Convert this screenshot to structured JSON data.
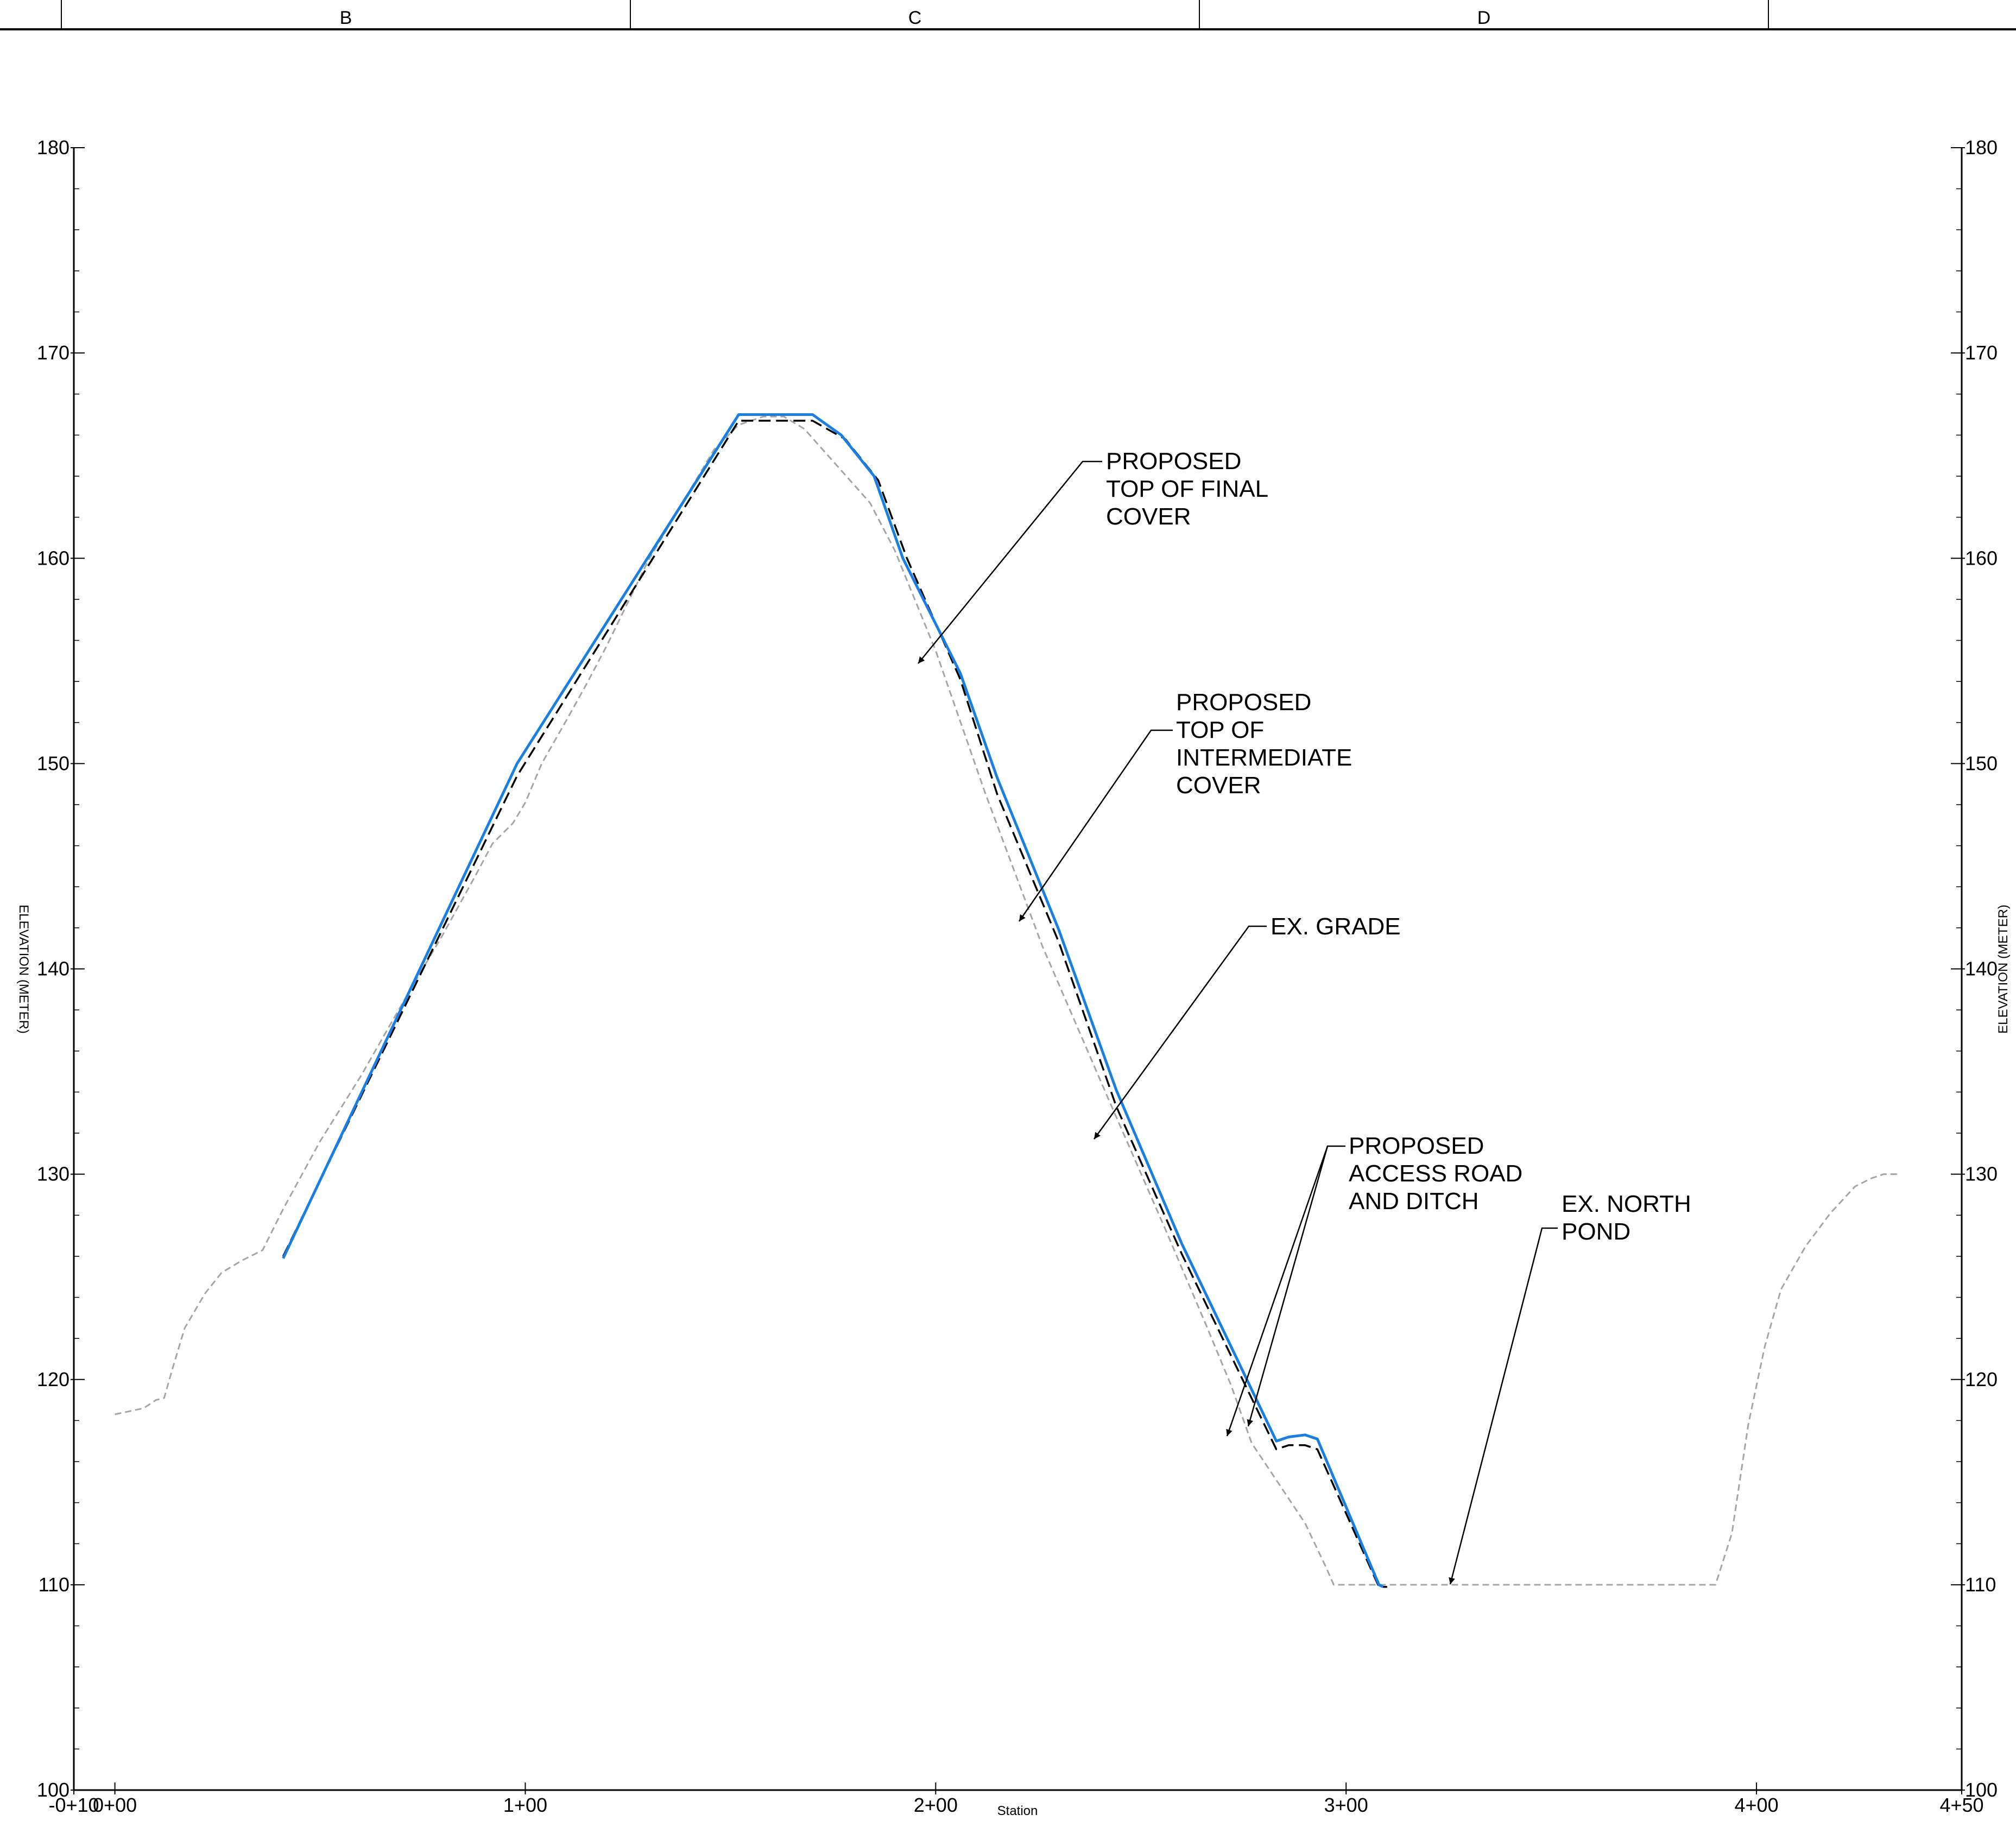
{
  "sheet": {
    "grid_letters": [
      "B",
      "C",
      "D"
    ]
  },
  "chart_data": {
    "type": "line",
    "title": "",
    "xlabel": "Station",
    "ylabel": "ELEVATION (METER)",
    "xlim": [
      -10,
      450
    ],
    "ylim": [
      100,
      180
    ],
    "grid": false,
    "x_ticks": [
      {
        "value": -10,
        "label": "-0+10"
      },
      {
        "value": 0,
        "label": "0+00"
      },
      {
        "value": 100,
        "label": "1+00"
      },
      {
        "value": 200,
        "label": "2+00"
      },
      {
        "value": 300,
        "label": "3+00"
      },
      {
        "value": 400,
        "label": "4+00"
      },
      {
        "value": 450,
        "label": "4+50"
      }
    ],
    "y_ticks": [
      {
        "value": 100,
        "label": "100"
      },
      {
        "value": 110,
        "label": "110"
      },
      {
        "value": 120,
        "label": "120"
      },
      {
        "value": 130,
        "label": "130"
      },
      {
        "value": 140,
        "label": "140"
      },
      {
        "value": 150,
        "label": "150"
      },
      {
        "value": 160,
        "label": "160"
      },
      {
        "value": 170,
        "label": "170"
      },
      {
        "value": 180,
        "label": "180"
      }
    ],
    "series": [
      {
        "name": "EX. GRADE",
        "color": "#a6a6a6",
        "dash": "dashed",
        "points": [
          [
            0,
            118.3
          ],
          [
            7,
            118.6
          ],
          [
            10,
            119
          ],
          [
            12,
            119.1
          ],
          [
            14,
            120.5
          ],
          [
            17,
            122.5
          ],
          [
            22,
            124.2
          ],
          [
            26,
            125.2
          ],
          [
            31,
            125.8
          ],
          [
            34,
            126.1
          ],
          [
            36,
            126.3
          ],
          [
            41,
            128.3
          ],
          [
            50,
            131.6
          ],
          [
            60,
            134.8
          ],
          [
            70,
            138.3
          ],
          [
            80,
            141.7
          ],
          [
            88,
            144.6
          ],
          [
            92,
            146.1
          ],
          [
            97,
            147.1
          ],
          [
            100,
            148.1
          ],
          [
            104,
            150
          ],
          [
            110,
            152.1
          ],
          [
            115,
            153.9
          ],
          [
            120,
            155.8
          ],
          [
            130,
            159.9
          ],
          [
            138,
            162.6
          ],
          [
            146,
            165.3
          ],
          [
            152,
            166.5
          ],
          [
            158,
            166.9
          ],
          [
            163,
            166.9
          ],
          [
            168,
            166.3
          ],
          [
            176,
            164.5
          ],
          [
            184,
            162.7
          ],
          [
            190,
            160.4
          ],
          [
            200,
            155.5
          ],
          [
            212,
            148.6
          ],
          [
            226,
            141.1
          ],
          [
            242,
            133.7
          ],
          [
            256,
            127.3
          ],
          [
            266,
            122.6
          ],
          [
            272,
            119.7
          ],
          [
            277,
            116.9
          ],
          [
            284,
            114.8
          ],
          [
            290,
            113
          ],
          [
            295,
            110.9
          ],
          [
            297,
            110
          ],
          [
            330,
            110
          ],
          [
            390,
            110
          ],
          [
            394,
            112.5
          ],
          [
            398,
            117.8
          ],
          [
            402,
            121.6
          ],
          [
            406,
            124.4
          ],
          [
            412,
            126.5
          ],
          [
            418,
            128.1
          ],
          [
            424,
            129.4
          ],
          [
            428,
            129.8
          ],
          [
            431,
            130
          ],
          [
            435,
            130
          ]
        ]
      },
      {
        "name": "PROPOSED TOP OF INTERMEDIATE COVER",
        "color": "#000000",
        "dash": "dashed",
        "points": [
          [
            41,
            126
          ],
          [
            98,
            149.4
          ],
          [
            152,
            166.7
          ],
          [
            170,
            166.7
          ],
          [
            178,
            165.8
          ],
          [
            186,
            163.8
          ],
          [
            193,
            160
          ],
          [
            206,
            154.1
          ],
          [
            215,
            148.5
          ],
          [
            230,
            141.3
          ],
          [
            244,
            133.3
          ],
          [
            260,
            126.1
          ],
          [
            283,
            116.6
          ],
          [
            286,
            116.8
          ],
          [
            290,
            116.8
          ],
          [
            293,
            116.6
          ],
          [
            308,
            109.9
          ],
          [
            310,
            109.9
          ]
        ]
      },
      {
        "name": "PROPOSED TOP OF FINAL COVER",
        "color": "#1a7fe0",
        "dash": "solid",
        "points": [
          [
            41,
            125.9
          ],
          [
            98,
            150
          ],
          [
            152,
            167
          ],
          [
            170,
            167
          ],
          [
            177,
            166
          ],
          [
            185,
            164
          ],
          [
            192,
            160
          ],
          [
            206,
            154.4
          ],
          [
            215,
            149.3
          ],
          [
            230,
            141.9
          ],
          [
            244,
            134.1
          ],
          [
            260,
            126.6
          ],
          [
            283,
            117
          ],
          [
            286,
            117.2
          ],
          [
            290,
            117.3
          ],
          [
            293,
            117.1
          ],
          [
            308,
            110
          ],
          [
            309,
            109.9
          ]
        ]
      }
    ],
    "annotations": [
      {
        "lines": [
          "PROPOSED",
          "TOP OF FINAL",
          "COVER"
        ]
      },
      {
        "lines": [
          "PROPOSED",
          "TOP OF",
          "INTERMEDIATE",
          "COVER"
        ]
      },
      {
        "lines": [
          "EX. GRADE"
        ]
      },
      {
        "lines": [
          "PROPOSED",
          "ACCESS ROAD",
          "AND DITCH"
        ]
      },
      {
        "lines": [
          "EX. NORTH",
          "POND"
        ]
      }
    ]
  }
}
